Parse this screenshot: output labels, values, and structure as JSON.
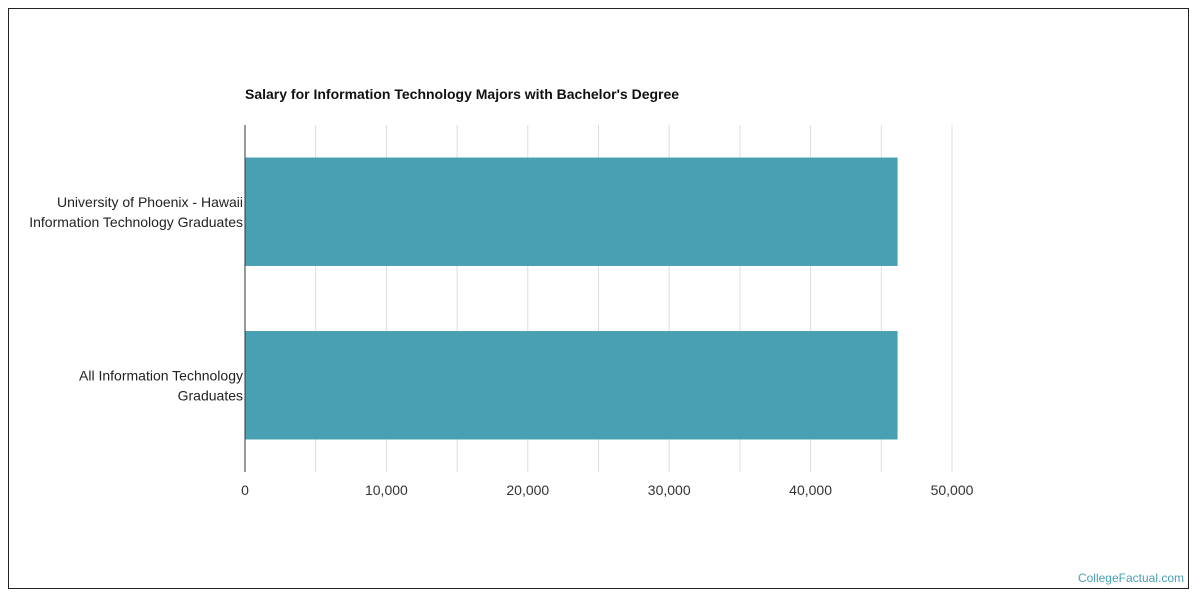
{
  "chart_data": {
    "type": "bar",
    "orientation": "horizontal",
    "title": "Salary for Information Technology Majors with Bachelor's Degree",
    "categories": [
      [
        "University of Phoenix - Hawaii",
        "Information Technology Graduates"
      ],
      [
        "All Information Technology",
        "Graduates"
      ]
    ],
    "values": [
      46150,
      46150
    ],
    "xlim": [
      0,
      50000
    ],
    "major_ticks": [
      0,
      10000,
      20000,
      30000,
      40000,
      50000
    ],
    "tick_labels": [
      "0",
      "10,000",
      "20,000",
      "30,000",
      "40,000",
      "50,000"
    ],
    "minor_gridlines_every": 5000,
    "grid": true,
    "bar_color": "#4aa0b3",
    "grid_color": "#dddddd"
  },
  "watermark": {
    "text": "CollegeFactual.com",
    "color": "#4aa0b3"
  }
}
